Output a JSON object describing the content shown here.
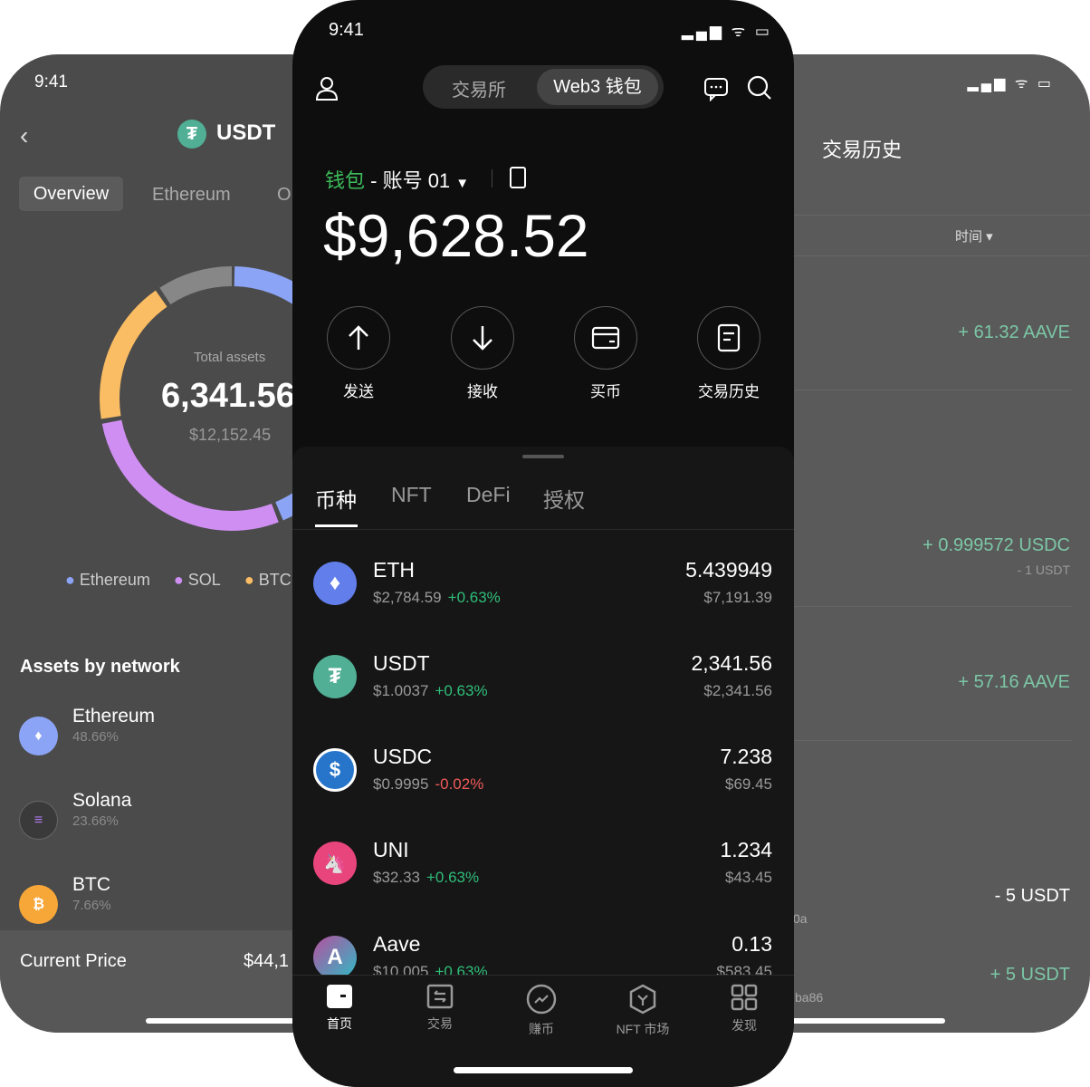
{
  "left_screen": {
    "time": "9:41",
    "title": "USDT",
    "tabs": [
      "Overview",
      "Ethereum",
      "O"
    ],
    "chart_data": {
      "type": "pie",
      "center_label": "Total assets",
      "center_value": "6,341.56",
      "center_sub": "$12,152.45",
      "legend": [
        {
          "name": "Ethereum",
          "color": "#8ca4f5"
        },
        {
          "name": "SOL",
          "color": "#cf8ef2"
        },
        {
          "name": "BTC",
          "color": "#fbbd63"
        }
      ]
    },
    "section_title": "Assets by network",
    "networks": [
      {
        "name": "Ethereum",
        "pct": "48.66%"
      },
      {
        "name": "Solana",
        "pct": "23.66%"
      },
      {
        "name": "BTC",
        "pct": "7.66%"
      }
    ],
    "price_label": "Current Price",
    "price_value": "$44,1"
  },
  "center_screen": {
    "time": "9:41",
    "segment": [
      "交易所",
      "Web3 钱包"
    ],
    "wallet_label": "钱包",
    "account": "- 账号 01",
    "balance": "$9,628.52",
    "actions": [
      "发送",
      "接收",
      "买币",
      "交易历史"
    ],
    "asset_tabs": [
      "币种",
      "NFT",
      "DeFi",
      "授权"
    ],
    "tokens": [
      {
        "name": "ETH",
        "price": "$2,784.59",
        "change": "+0.63%",
        "up": true,
        "balance": "5.439949",
        "usd": "$7,191.39"
      },
      {
        "name": "USDT",
        "price": "$1.0037",
        "change": "+0.63%",
        "up": true,
        "balance": "2,341.56",
        "usd": "$2,341.56"
      },
      {
        "name": "USDC",
        "price": "$0.9995",
        "change": "-0.02%",
        "up": false,
        "balance": "7.238",
        "usd": "$69.45"
      },
      {
        "name": "UNI",
        "price": "$32.33",
        "change": "+0.63%",
        "up": true,
        "balance": "1.234",
        "usd": "$43.45"
      },
      {
        "name": "Aave",
        "price": "$10.005",
        "change": "+0.63%",
        "up": true,
        "balance": "0.13",
        "usd": "$583.45"
      }
    ],
    "nav": [
      "首页",
      "交易",
      "赚币",
      "NFT 市场",
      "发现"
    ]
  },
  "right_screen": {
    "title": "交易历史",
    "filter": "时间",
    "entries": [
      {
        "amount": "+ 61.32 AAVE"
      },
      {
        "amount": "+ 0.999572 USDC",
        "sub": "- 1 USDT"
      },
      {
        "amount": "+ 57.16 AAVE"
      },
      {
        "amount": "- 5 USDT",
        "white": true,
        "addr": "0a"
      },
      {
        "amount": "+ 5 USDT",
        "addr": "ba86"
      }
    ]
  },
  "colors": {
    "accent_green": "#2fbe7a",
    "down_red": "#ef5a5a",
    "history_green": "#7cc7a6"
  }
}
